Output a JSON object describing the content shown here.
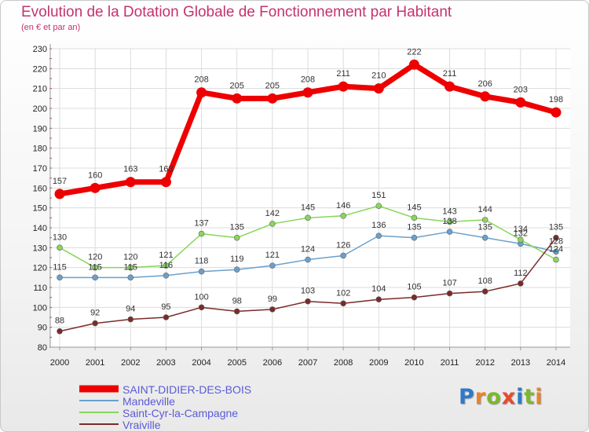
{
  "header": {
    "title": "Evolution de la Dotation Globale de Fonctionnement par Habitant",
    "subtitle": "(en € et par an)"
  },
  "logo": {
    "text": "Proxiti",
    "letter_colors": [
      "#2f79c9",
      "#e9832c",
      "#7cb82f",
      "#e74b2a",
      "#2f79c9",
      "#7cb82f",
      "#e9832c"
    ]
  },
  "chart_data": {
    "type": "line",
    "title": "Evolution de la Dotation Globale de Fonctionnement par Habitant",
    "subtitle": "(en € et par an)",
    "x": [
      "2000",
      "2001",
      "2002",
      "2003",
      "2004",
      "2005",
      "2006",
      "2007",
      "2008",
      "2009",
      "2010",
      "2011",
      "2012",
      "2013",
      "2014"
    ],
    "ylim": [
      80,
      230
    ],
    "yticks": [
      80,
      90,
      100,
      110,
      120,
      130,
      140,
      150,
      160,
      170,
      180,
      190,
      200,
      210,
      220,
      230
    ],
    "grid": true,
    "legend_position": "bottom-left",
    "series": [
      {
        "name": "SAINT-DIDIER-DES-BOIS",
        "color": "#ee0000",
        "label_color": "#5a5ad8",
        "emphasis": "thick",
        "values": [
          157,
          160,
          163,
          163,
          208,
          205,
          205,
          208,
          211,
          210,
          222,
          211,
          206,
          203,
          198
        ]
      },
      {
        "name": "Mandeville",
        "color": "#6aa0cc",
        "label_color": "#5a5ad8",
        "emphasis": "thin",
        "values": [
          115,
          115,
          115,
          116,
          118,
          119,
          121,
          124,
          126,
          136,
          135,
          138,
          135,
          132,
          128
        ]
      },
      {
        "name": "Saint-Cyr-la-Campagne",
        "color": "#88d65a",
        "label_color": "#5a5ad8",
        "emphasis": "thin",
        "values": [
          130,
          120,
          120,
          121,
          137,
          135,
          142,
          145,
          146,
          151,
          145,
          143,
          144,
          134,
          124
        ]
      },
      {
        "name": "Vraiville",
        "color": "#7a2a2a",
        "label_color": "#5a5ad8",
        "emphasis": "thin",
        "values": [
          88,
          92,
          94,
          95,
          100,
          98,
          99,
          103,
          102,
          104,
          105,
          107,
          108,
          112,
          135
        ]
      }
    ]
  }
}
